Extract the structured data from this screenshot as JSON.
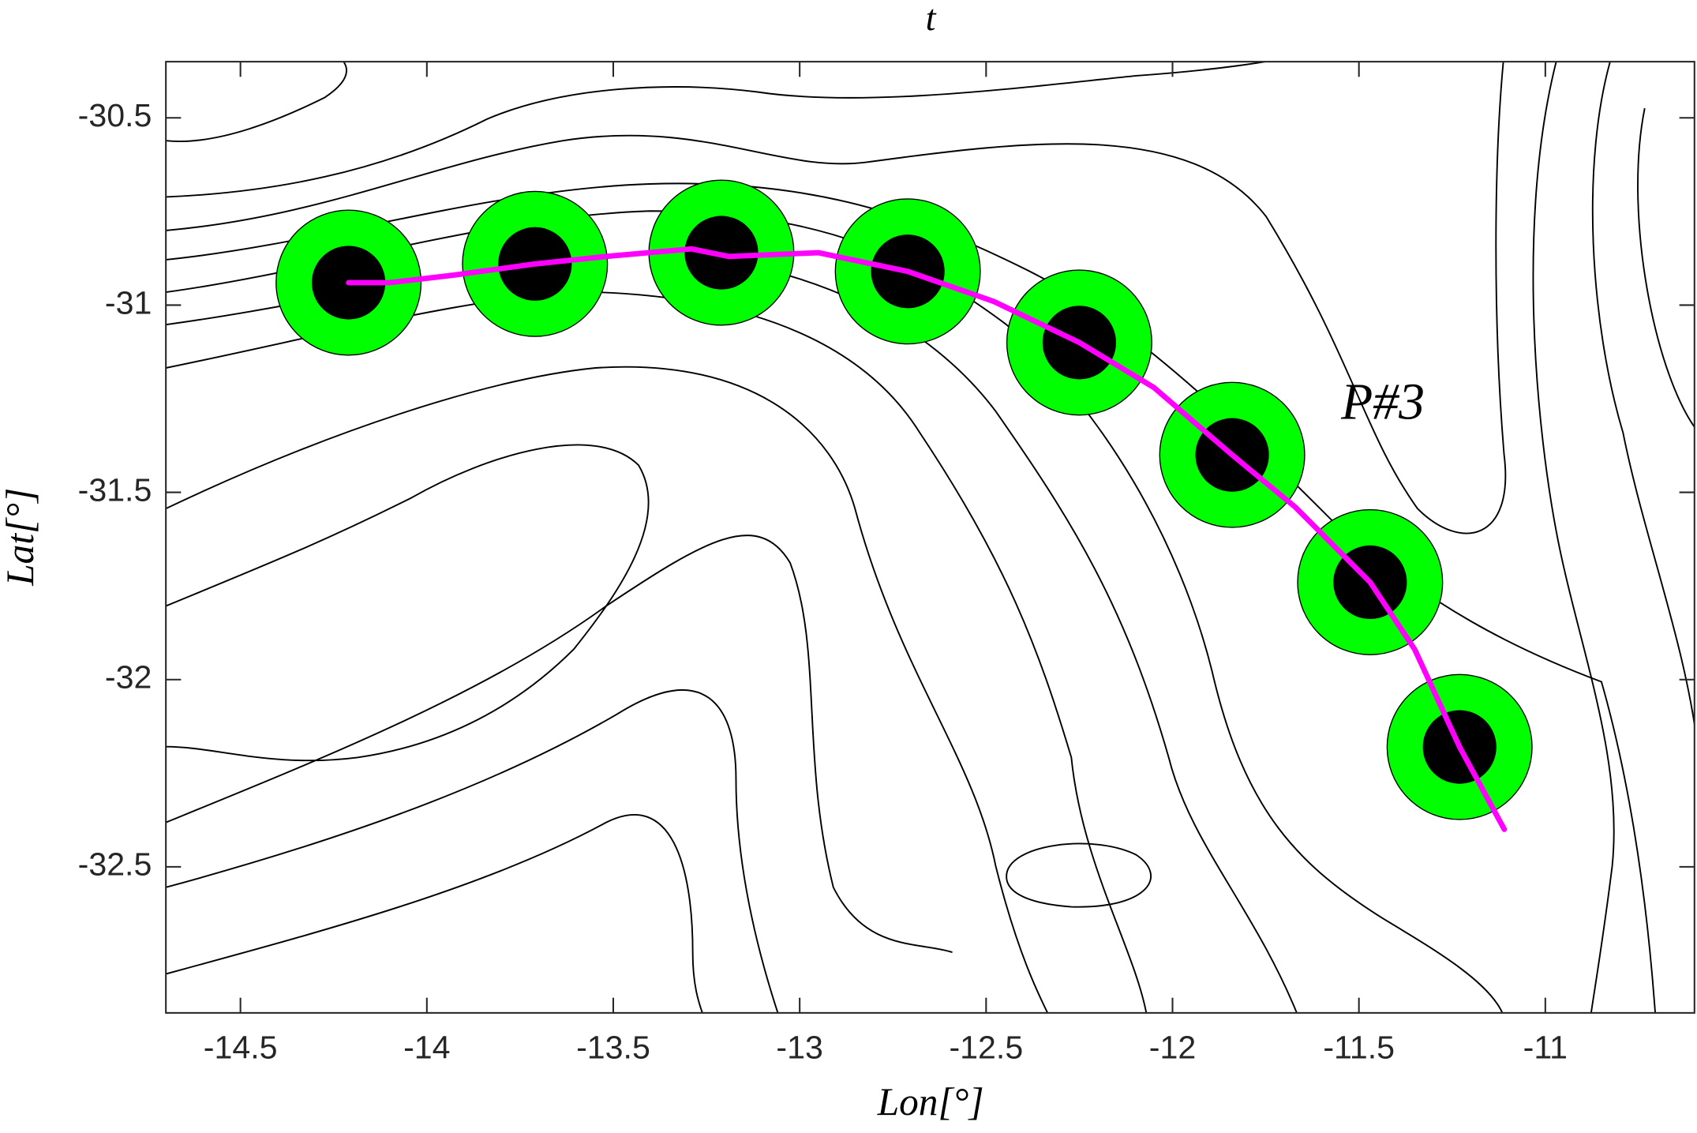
{
  "chart_data": {
    "type": "trajectory",
    "title": "t",
    "xlabel": "Lon[°]",
    "ylabel": "Lat[°]",
    "annotation": "P#3",
    "xlim": [
      -14.7,
      -10.6
    ],
    "ylim": [
      -32.89,
      -30.35
    ],
    "xticks": [
      -14.5,
      -14,
      -13.5,
      -13,
      -12.5,
      -12,
      -11.5,
      -11
    ],
    "yticks": [
      -30.5,
      -31,
      -31.5,
      -32,
      -32.5
    ],
    "points": {
      "x": [
        -14.21,
        -13.71,
        -13.21,
        -12.71,
        -12.25,
        -11.84,
        -11.47,
        -11.23
      ],
      "y": [
        -30.94,
        -30.89,
        -30.86,
        -30.91,
        -31.1,
        -31.4,
        -31.74,
        -32.18
      ],
      "color": "#00ff00",
      "core_color": "#000000"
    },
    "track": {
      "x": [
        -14.21,
        -14.1,
        -13.93,
        -13.71,
        -13.52,
        -13.29,
        -13.19,
        -12.95,
        -12.71,
        -12.48,
        -12.25,
        -12.05,
        -11.84,
        -11.67,
        -11.47,
        -11.35,
        -11.23,
        -11.11
      ],
      "y": [
        -30.94,
        -30.94,
        -30.92,
        -30.89,
        -30.87,
        -30.85,
        -30.87,
        -30.86,
        -30.91,
        -30.99,
        -31.1,
        -31.22,
        -31.4,
        -31.54,
        -31.74,
        -31.92,
        -32.18,
        -32.4
      ],
      "color": "#ff00ff"
    }
  }
}
